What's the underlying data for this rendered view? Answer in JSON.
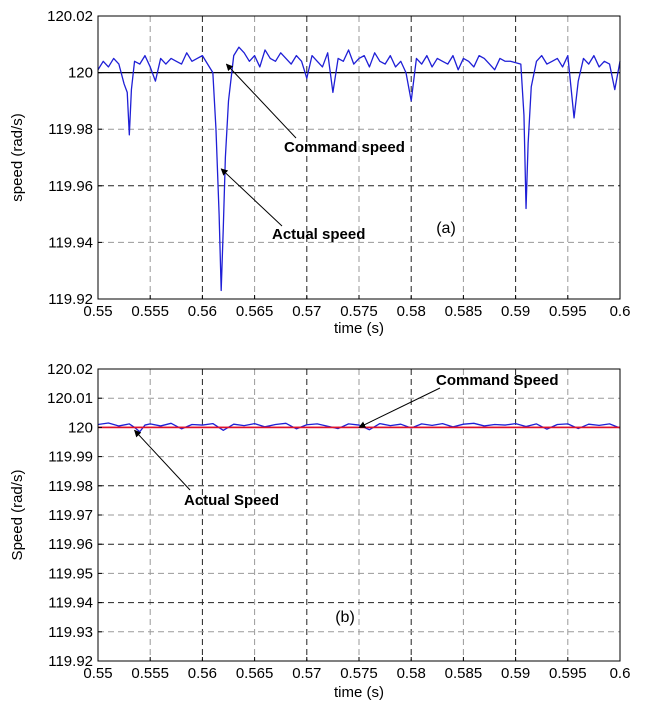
{
  "chart_data": [
    {
      "type": "line",
      "panel_label": "(a)",
      "xlabel": "time (s)",
      "ylabel": "speed (rad/s)",
      "xlim": [
        0.55,
        0.6
      ],
      "ylim": [
        119.92,
        120.02
      ],
      "xticks": [
        0.55,
        0.555,
        0.56,
        0.565,
        0.57,
        0.575,
        0.58,
        0.585,
        0.59,
        0.595,
        0.6
      ],
      "xtick_labels": [
        "0.55",
        "0.555",
        "0.56",
        "0.565",
        "0.57",
        "0.575",
        "0.58",
        "0.585",
        "0.59",
        "0.595",
        "0.6"
      ],
      "yticks": [
        119.92,
        119.94,
        119.96,
        119.98,
        120,
        120.02
      ],
      "ytick_labels": [
        "119.92",
        "119.94",
        "119.96",
        "119.98",
        "120",
        "120.02"
      ],
      "grid": true,
      "series": [
        {
          "name": "Command speed",
          "color": "#000000",
          "x": [
            0.55,
            0.6
          ],
          "y": [
            120.0,
            120.0
          ]
        },
        {
          "name": "Actual speed",
          "color": "#1f1fd6",
          "x": [
            0.55,
            0.5505,
            0.551,
            0.5515,
            0.552,
            0.5525,
            0.5528,
            0.553,
            0.5532,
            0.5535,
            0.554,
            0.5545,
            0.555,
            0.5555,
            0.556,
            0.5565,
            0.557,
            0.5575,
            0.558,
            0.5585,
            0.559,
            0.5595,
            0.56,
            0.5605,
            0.561,
            0.5613,
            0.5616,
            0.5618,
            0.562,
            0.5622,
            0.5625,
            0.563,
            0.5635,
            0.564,
            0.5645,
            0.565,
            0.5655,
            0.566,
            0.5665,
            0.567,
            0.5675,
            0.568,
            0.5685,
            0.569,
            0.5695,
            0.57,
            0.5705,
            0.571,
            0.5715,
            0.572,
            0.5725,
            0.573,
            0.5735,
            0.574,
            0.5745,
            0.575,
            0.5755,
            0.576,
            0.5765,
            0.577,
            0.5775,
            0.578,
            0.5785,
            0.579,
            0.5795,
            0.58,
            0.5805,
            0.581,
            0.5815,
            0.582,
            0.5825,
            0.583,
            0.5835,
            0.584,
            0.5845,
            0.585,
            0.5855,
            0.586,
            0.5865,
            0.587,
            0.5875,
            0.588,
            0.5885,
            0.589,
            0.5895,
            0.5905,
            0.5908,
            0.591,
            0.5912,
            0.5915,
            0.592,
            0.5925,
            0.593,
            0.5935,
            0.594,
            0.5945,
            0.595,
            0.5953,
            0.5956,
            0.596,
            0.5965,
            0.597,
            0.5975,
            0.598,
            0.5985,
            0.599,
            0.5995,
            0.6
          ],
          "y": [
            120.001,
            120.004,
            120.002,
            120.005,
            120.003,
            119.996,
            119.993,
            119.978,
            119.994,
            120.004,
            120.003,
            120.006,
            120.002,
            119.997,
            120.005,
            120.003,
            120.005,
            120.004,
            120.003,
            120.007,
            120.004,
            120.005,
            120.006,
            120.003,
            120.0,
            119.98,
            119.95,
            119.923,
            119.945,
            119.97,
            119.99,
            120.006,
            120.009,
            120.007,
            120.004,
            120.006,
            120.002,
            120.008,
            120.005,
            120.004,
            120.007,
            120.005,
            120.003,
            120.006,
            120.004,
            119.998,
            120.006,
            120.004,
            120.002,
            120.007,
            119.993,
            120.005,
            120.004,
            120.008,
            120.003,
            120.005,
            120.006,
            120.002,
            120.007,
            120.004,
            120.003,
            120.006,
            120.002,
            120.004,
            120.0,
            119.99,
            120.005,
            120.003,
            120.006,
            120.002,
            120.005,
            120.004,
            120.003,
            120.006,
            120.001,
            120.005,
            120.004,
            120.002,
            120.006,
            120.005,
            120.003,
            120.001,
            120.005,
            120.004,
            120.004,
            120.003,
            119.985,
            119.952,
            119.975,
            119.995,
            120.004,
            120.006,
            120.003,
            120.004,
            120.005,
            120.002,
            120.006,
            119.995,
            119.984,
            119.997,
            120.005,
            120.003,
            120.006,
            120.002,
            120.004,
            120.003,
            119.994,
            120.004
          ]
        }
      ],
      "annotations": [
        {
          "text": "Command speed",
          "x": 0.5623,
          "y": 120.003
        },
        {
          "text": "Actual speed",
          "x": 0.5618,
          "y": 119.966
        }
      ]
    },
    {
      "type": "line",
      "panel_label": "(b)",
      "xlabel": "time (s)",
      "ylabel": "Speed (rad/s)",
      "xlim": [
        0.55,
        0.6
      ],
      "ylim": [
        119.92,
        120.02
      ],
      "xticks": [
        0.55,
        0.555,
        0.56,
        0.565,
        0.57,
        0.575,
        0.58,
        0.585,
        0.59,
        0.595,
        0.6
      ],
      "xtick_labels": [
        "0.55",
        "0.555",
        "0.56",
        "0.565",
        "0.57",
        "0.575",
        "0.58",
        "0.585",
        "0.59",
        "0.595",
        "0.6"
      ],
      "yticks": [
        119.92,
        119.93,
        119.94,
        119.95,
        119.96,
        119.97,
        119.98,
        119.99,
        120,
        120.01,
        120.02
      ],
      "ytick_labels": [
        "119.92",
        "119.93",
        "119.94",
        "119.95",
        "119.96",
        "119.97",
        "119.98",
        "119.99",
        "120",
        "120.01",
        "120.02"
      ],
      "grid": true,
      "series": [
        {
          "name": "Command Speed",
          "color": "#e0102a",
          "x": [
            0.55,
            0.6
          ],
          "y": [
            120.0,
            120.0
          ]
        },
        {
          "name": "Actual Speed",
          "color": "#1f1fd6",
          "x": [
            0.55,
            0.551,
            0.552,
            0.553,
            0.5535,
            0.554,
            0.5545,
            0.555,
            0.556,
            0.557,
            0.558,
            0.559,
            0.56,
            0.561,
            0.562,
            0.563,
            0.564,
            0.565,
            0.566,
            0.567,
            0.568,
            0.569,
            0.57,
            0.571,
            0.572,
            0.573,
            0.574,
            0.575,
            0.576,
            0.577,
            0.578,
            0.579,
            0.58,
            0.581,
            0.582,
            0.583,
            0.584,
            0.585,
            0.586,
            0.587,
            0.588,
            0.589,
            0.59,
            0.591,
            0.592,
            0.593,
            0.594,
            0.595,
            0.596,
            0.597,
            0.598,
            0.599,
            0.6
          ],
          "y": [
            120.001,
            120.0015,
            120.0005,
            120.0012,
            120.0,
            119.9985,
            120.0008,
            120.0012,
            120.0005,
            120.0014,
            119.9995,
            120.001,
            120.0008,
            120.0013,
            119.999,
            120.0011,
            120.0006,
            120.0013,
            120.0002,
            120.001,
            120.0014,
            119.9995,
            120.0009,
            120.0012,
            120.0004,
            119.9996,
            120.0012,
            120.0008,
            119.9992,
            120.0013,
            120.0006,
            120.0011,
            119.9998,
            120.0012,
            120.0007,
            120.0013,
            120.0002,
            120.0011,
            120.0014,
            120.0005,
            120.001,
            120.0008,
            120.0013,
            120.0003,
            120.0012,
            119.9994,
            120.001,
            120.0012,
            119.9996,
            120.0011,
            120.0007,
            120.0012,
            119.9998
          ]
        }
      ],
      "annotations": [
        {
          "text": "Command Speed",
          "x": 0.575,
          "y": 120.0
        },
        {
          "text": "Actual Speed",
          "x": 0.5535,
          "y": 119.999
        }
      ]
    }
  ]
}
